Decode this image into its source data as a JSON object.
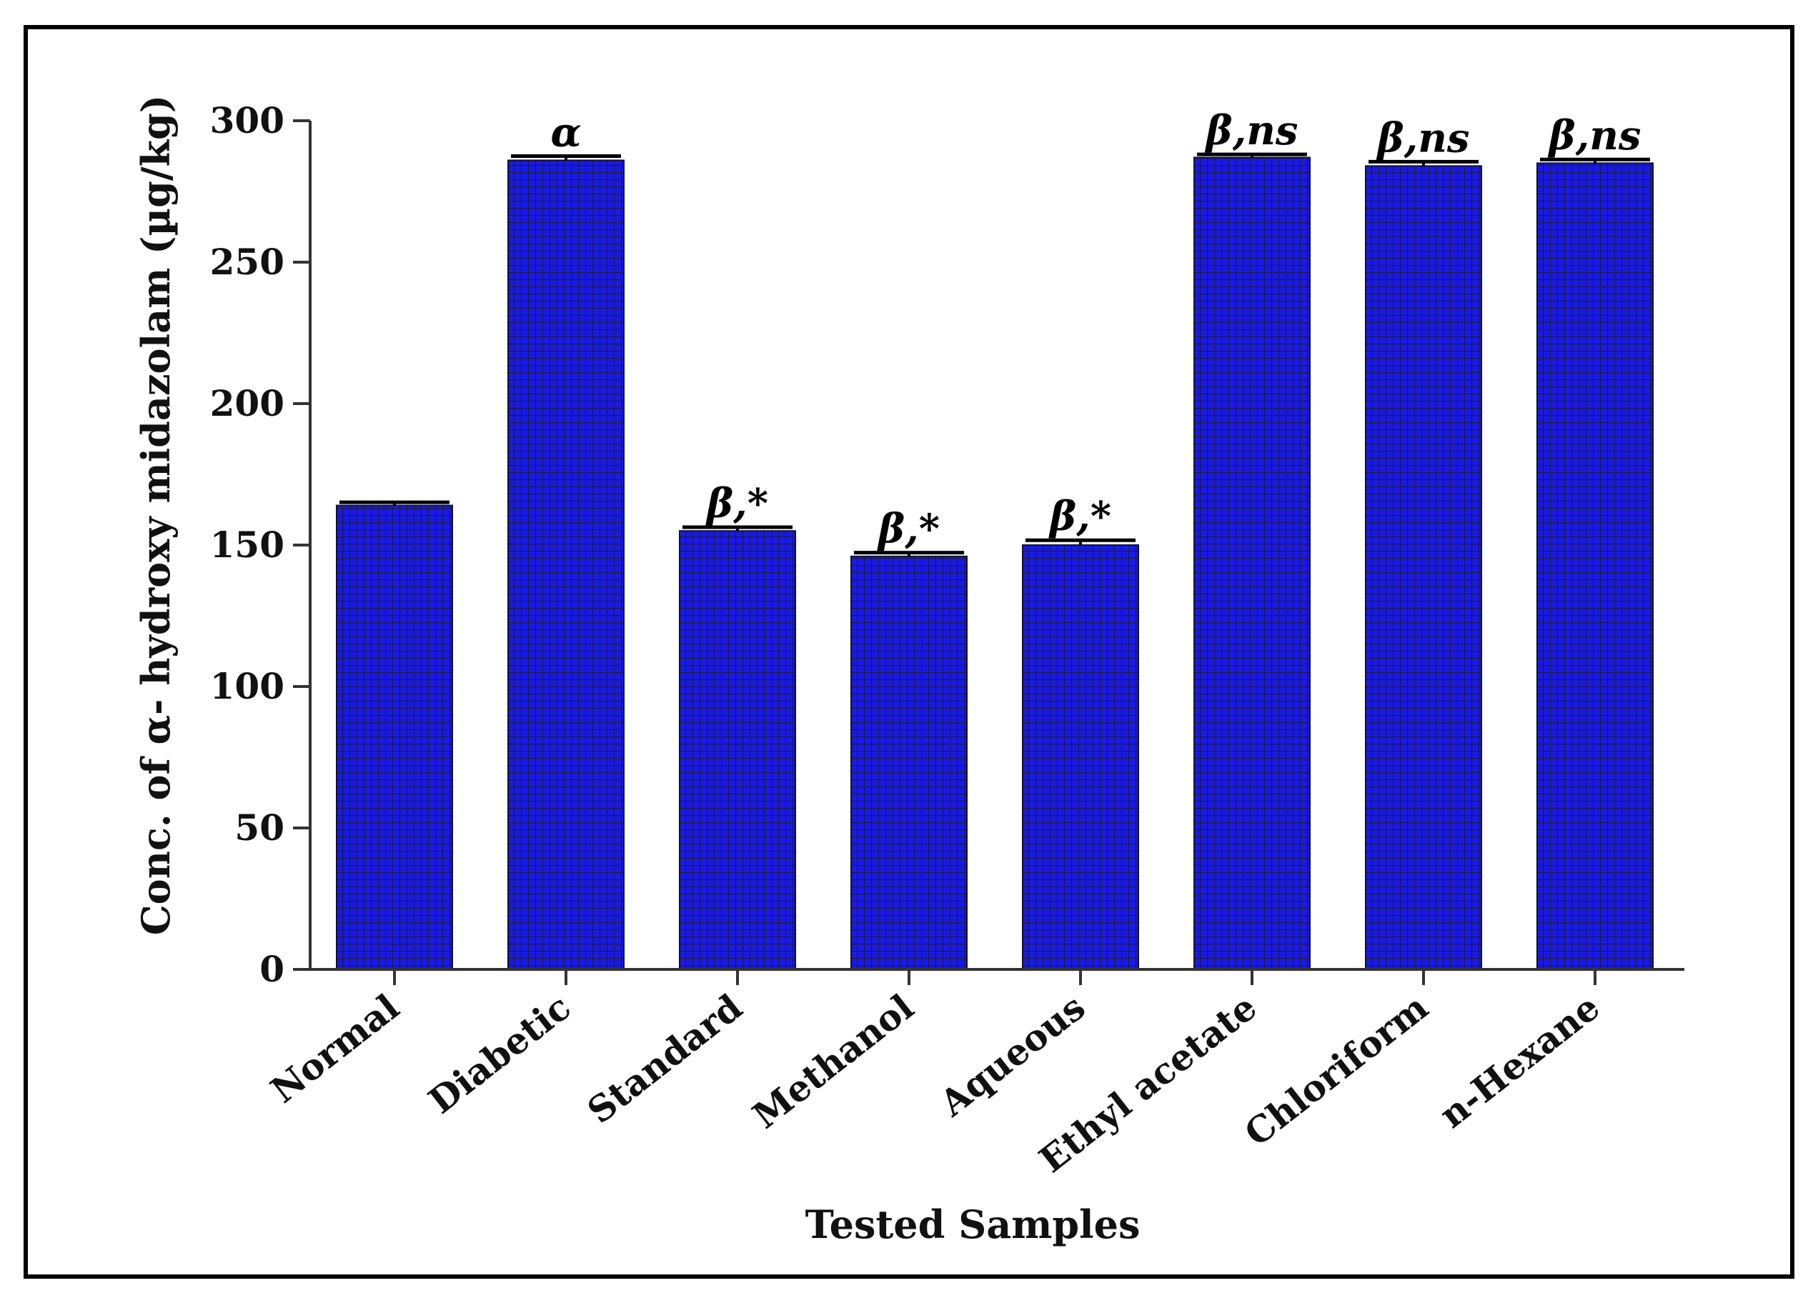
{
  "chart_data": {
    "type": "bar",
    "title": "",
    "xlabel": "Tested Samples",
    "ylabel": "Conc. of α- hydroxy midazolam (µg/kg)",
    "ylim": [
      0,
      300
    ],
    "yticks": [
      0,
      50,
      100,
      150,
      200,
      250,
      300
    ],
    "categories": [
      "Normal",
      "Diabetic",
      "Standard",
      "Methanol",
      "Aqueous",
      "Ethyl acetate",
      "Chloriform",
      "n-Hexane"
    ],
    "values": [
      164,
      286,
      155,
      146,
      150,
      287,
      284,
      285
    ],
    "errors": [
      0.6,
      1,
      0.8,
      0.8,
      1.2,
      0.6,
      1,
      0.8
    ],
    "annotations": [
      "",
      "α",
      "β,*",
      "β,*",
      "β,*",
      "β,ns",
      "β,ns",
      "β,ns"
    ],
    "bar_color": "#1a1ae6",
    "grid_color": "#1a1a40",
    "grid": false,
    "legend": "none"
  }
}
